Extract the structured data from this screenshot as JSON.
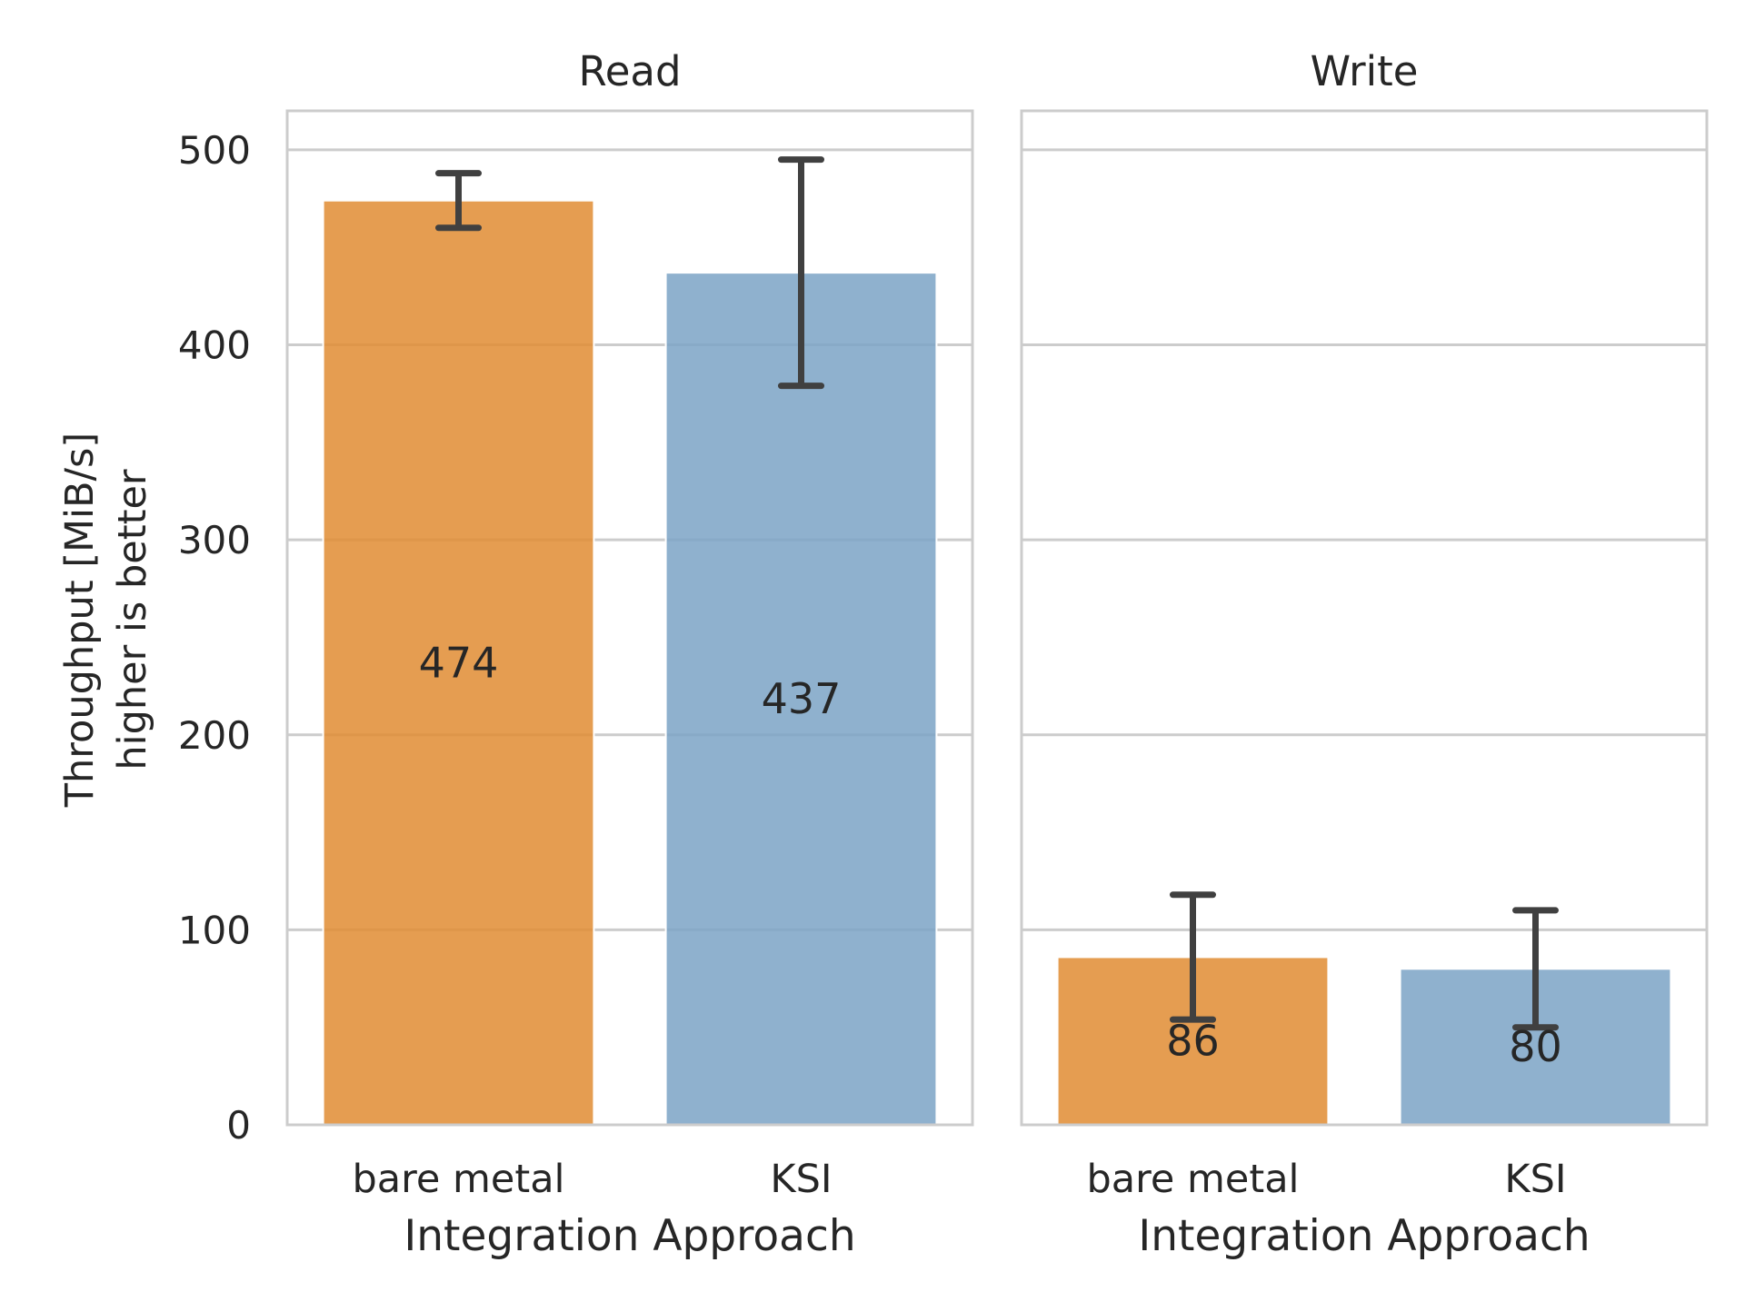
{
  "chart_data": {
    "type": "bar",
    "layout": "faceted",
    "shared_y": true,
    "ylabel_lines": [
      "Throughput  [MiB/s]",
      "higher is better"
    ],
    "ylim": [
      0,
      520
    ],
    "yticks": [
      0,
      100,
      200,
      300,
      400,
      500
    ],
    "grid": true,
    "colors": {
      "bare metal": "#e08c33",
      "KSI": "#7ba3c6"
    },
    "facets": [
      {
        "title": "Read",
        "xlabel": "Integration Approach",
        "categories": [
          "bare metal",
          "KSI"
        ],
        "values": [
          474,
          437
        ],
        "value_labels": [
          "474",
          "437"
        ],
        "error_low": [
          460,
          379
        ],
        "error_high": [
          488,
          495
        ]
      },
      {
        "title": "Write",
        "xlabel": "Integration Approach",
        "categories": [
          "bare metal",
          "KSI"
        ],
        "values": [
          86,
          80
        ],
        "value_labels": [
          "86",
          "80"
        ],
        "error_low": [
          54,
          50
        ],
        "error_high": [
          118,
          110
        ]
      }
    ]
  }
}
